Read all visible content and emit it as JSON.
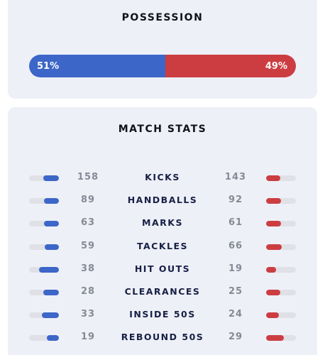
{
  "possession": {
    "title": "POSSESSION",
    "home_label": "51%",
    "away_label": "49%",
    "home_pct": 51,
    "away_pct": 49,
    "home_color": "#3c66c8",
    "away_color": "#cc3d42"
  },
  "match_stats": {
    "title": "MATCH STATS",
    "rows": [
      {
        "label": "KICKS",
        "home": "158",
        "away": "143",
        "home_fill": 0.52,
        "away_fill": 0.48
      },
      {
        "label": "HANDBALLS",
        "home": "89",
        "away": "92",
        "home_fill": 0.49,
        "away_fill": 0.51
      },
      {
        "label": "MARKS",
        "home": "63",
        "away": "61",
        "home_fill": 0.51,
        "away_fill": 0.49
      },
      {
        "label": "TACKLES",
        "home": "59",
        "away": "66",
        "home_fill": 0.47,
        "away_fill": 0.53
      },
      {
        "label": "HIT OUTS",
        "home": "38",
        "away": "19",
        "home_fill": 0.67,
        "away_fill": 0.33
      },
      {
        "label": "CLEARANCES",
        "home": "28",
        "away": "25",
        "home_fill": 0.53,
        "away_fill": 0.47
      },
      {
        "label": "INSIDE 50S",
        "home": "33",
        "away": "24",
        "home_fill": 0.58,
        "away_fill": 0.42
      },
      {
        "label": "REBOUND 50S",
        "home": "19",
        "away": "29",
        "home_fill": 0.4,
        "away_fill": 0.6
      }
    ]
  }
}
